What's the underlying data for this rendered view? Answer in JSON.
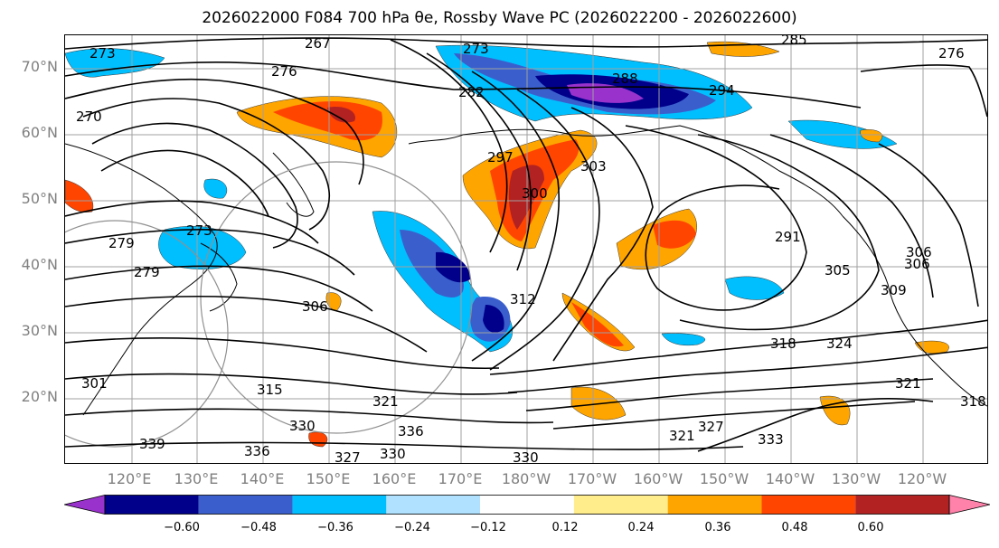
{
  "title": "2026022000 F084 700 hPa θe, Rossby Wave PC (2026022200 - 2026022600)",
  "lat_labels": [
    "70°N",
    "60°N",
    "50°N",
    "40°N",
    "30°N",
    "20°N"
  ],
  "lon_labels": [
    "120°E",
    "130°E",
    "140°E",
    "150°E",
    "160°E",
    "170°E",
    "180°W",
    "170°W",
    "160°W",
    "150°W",
    "140°W",
    "130°W",
    "120°W"
  ],
  "colorbar": {
    "ticks": [
      "−0.60",
      "−0.48",
      "−0.36",
      "−0.24",
      "−0.12",
      "0.12",
      "0.24",
      "0.36",
      "0.48",
      "0.60"
    ],
    "colors": [
      "#9932cc",
      "#00008b",
      "#3a5fcd",
      "#00bfff",
      "#b0e2ff",
      "#ffffff",
      "#ffec8b",
      "#ffa500",
      "#ff4500",
      "#b22222",
      "#ff82ab"
    ]
  },
  "contour_labels": [
    "267",
    "273",
    "273",
    "276",
    "270",
    "285",
    "282",
    "288",
    "294",
    "276",
    "303",
    "300",
    "297",
    "291",
    "305",
    "309",
    "306",
    "306",
    "312",
    "315",
    "321",
    "324",
    "318",
    "321",
    "327",
    "330",
    "333",
    "336",
    "339",
    "327",
    "330",
    "336",
    "330",
    "279",
    "279",
    "273",
    "301",
    "321",
    "318",
    "306"
  ]
}
